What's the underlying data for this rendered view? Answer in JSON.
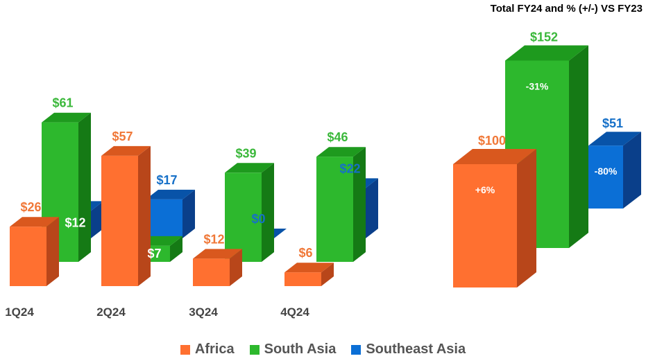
{
  "chart_data": {
    "type": "bar",
    "title": "Total FY24 and % (+/-) VS FY23",
    "categories": [
      "1Q24",
      "2Q24",
      "3Q24",
      "4Q24"
    ],
    "series": [
      {
        "name": "Africa",
        "values": [
          26,
          57,
          12,
          6
        ],
        "labels": [
          "$26",
          "$57",
          "$12",
          "$6"
        ],
        "color": "#FF7030"
      },
      {
        "name": "South Asia",
        "values": [
          61,
          7,
          39,
          46
        ],
        "labels": [
          "$61",
          "$7",
          "$39",
          "$46"
        ],
        "color": "#2DB82D"
      },
      {
        "name": "Southeast Asia",
        "values": [
          12,
          17,
          0,
          22
        ],
        "labels": [
          "$12",
          "$17",
          "$0",
          "$22"
        ],
        "color": "#0B6FD6"
      }
    ],
    "totals": {
      "values": [
        100,
        152,
        51
      ],
      "labels": [
        "$100",
        "$152",
        "$51"
      ],
      "changes": [
        "+6%",
        "-31%",
        "-80%"
      ]
    },
    "legend_position": "bottom",
    "grid": false
  },
  "colors": {
    "africa_front": "#FF7030",
    "africa_side": "#B8461A",
    "africa_top": "#D9581E",
    "south_front": "#2DB82D",
    "south_side": "#157A15",
    "south_top": "#1E9A1E",
    "sea_front": "#0B6FD6",
    "sea_side": "#0A3F8A",
    "sea_top": "#0853A8",
    "africa_label": "#F07838",
    "south_label": "#3BB83B",
    "sea_label": "#1670C8"
  }
}
